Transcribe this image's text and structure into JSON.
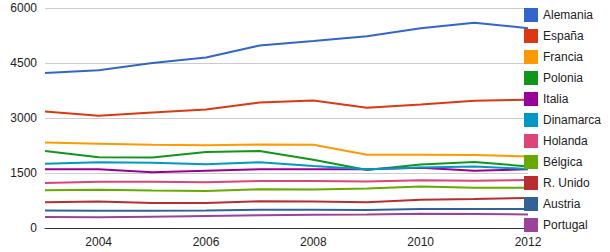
{
  "chart_data": {
    "type": "line",
    "x": [
      2003,
      2004,
      2005,
      2006,
      2007,
      2008,
      2009,
      2010,
      2011,
      2012
    ],
    "xlim": [
      2003,
      2012
    ],
    "xticks": [
      2004,
      2006,
      2008,
      2010,
      2012
    ],
    "ylim": [
      0,
      6000
    ],
    "yticks": [
      0,
      1500,
      3000,
      4500,
      6000
    ],
    "grid": true,
    "legend": "top-right",
    "series": [
      {
        "name": "Alemania",
        "color": "#3366cc",
        "values": [
          4230,
          4300,
          4500,
          4650,
          4980,
          5100,
          5230,
          5450,
          5600,
          5450
        ]
      },
      {
        "name": "España",
        "color": "#dc3912",
        "values": [
          3180,
          3060,
          3150,
          3230,
          3420,
          3480,
          3280,
          3370,
          3470,
          3500
        ]
      },
      {
        "name": "Francia",
        "color": "#ff9900",
        "values": [
          2330,
          2300,
          2270,
          2260,
          2280,
          2270,
          2000,
          2000,
          1990,
          1950
        ]
      },
      {
        "name": "Polonia",
        "color": "#109618",
        "values": [
          2100,
          1930,
          1920,
          2070,
          2100,
          1860,
          1580,
          1730,
          1800,
          1680
        ]
      },
      {
        "name": "Italia",
        "color": "#990099",
        "values": [
          1600,
          1600,
          1520,
          1560,
          1600,
          1600,
          1600,
          1640,
          1560,
          1600
        ]
      },
      {
        "name": "Dinamarca",
        "color": "#0099c6",
        "values": [
          1750,
          1790,
          1780,
          1740,
          1790,
          1690,
          1600,
          1650,
          1680,
          1610
        ]
      },
      {
        "name": "Holanda",
        "color": "#dd4477",
        "values": [
          1230,
          1260,
          1260,
          1250,
          1280,
          1280,
          1270,
          1300,
          1290,
          1310
        ]
      },
      {
        "name": "Bélgica",
        "color": "#66aa00",
        "values": [
          1030,
          1040,
          1020,
          1010,
          1060,
          1050,
          1080,
          1130,
          1100,
          1100
        ]
      },
      {
        "name": "R. Unido",
        "color": "#b82e2e",
        "values": [
          700,
          720,
          680,
          680,
          730,
          720,
          700,
          770,
          790,
          820
        ]
      },
      {
        "name": "Austria",
        "color": "#316395",
        "values": [
          480,
          470,
          470,
          480,
          500,
          500,
          490,
          520,
          520,
          520
        ]
      },
      {
        "name": "Portugal",
        "color": "#994499",
        "values": [
          300,
          290,
          310,
          330,
          350,
          360,
          370,
          390,
          380,
          370
        ]
      }
    ]
  }
}
